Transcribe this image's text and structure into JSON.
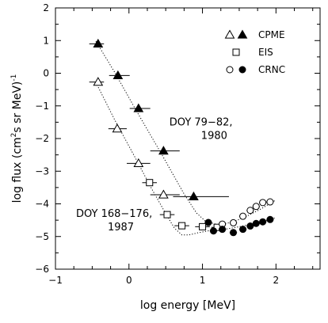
{
  "chart_data": {
    "type": "scatter",
    "xlabel": "log energy  [MeV]",
    "ylabel_main": "log flux  (cm",
    "ylabel_sup1": "2",
    "ylabel_mid": "s  sr MeV)",
    "ylabel_sup2": "-1",
    "xlim": [
      -1,
      2.6
    ],
    "ylim": [
      -6,
      2
    ],
    "xticks": [
      -1,
      0,
      1,
      2
    ],
    "yticks": [
      -6,
      -5,
      -4,
      -3,
      -2,
      -1,
      0,
      1,
      2
    ],
    "grid": false,
    "legend_position": "top-right",
    "legend": [
      {
        "label": "CPME",
        "markers": [
          "triangle-open",
          "triangle-filled"
        ]
      },
      {
        "label": "EIS",
        "markers": [
          "square-open"
        ]
      },
      {
        "label": "CRNC",
        "markers": [
          "circle-open",
          "circle-filled"
        ]
      }
    ],
    "annotations": [
      {
        "lines": [
          "DOY 79−82,",
          "1980"
        ],
        "x": 0.55,
        "y": -1.6
      },
      {
        "lines": [
          "DOY 168−176,",
          "1987"
        ],
        "x": -0.72,
        "y": -4.4
      }
    ],
    "series": [
      {
        "instrument": "CPME",
        "epoch": "1980",
        "marker": "triangle-filled",
        "points": [
          [
            -0.42,
            0.9
          ],
          [
            -0.15,
            -0.07
          ],
          [
            0.13,
            -1.08
          ],
          [
            0.47,
            -2.38
          ],
          [
            0.88,
            -3.78
          ]
        ],
        "xerr_lo": [
          0.12,
          0.12,
          0.12,
          0.18,
          0.28
        ],
        "xerr_hi": [
          0.08,
          0.16,
          0.16,
          0.22,
          0.48
        ]
      },
      {
        "instrument": "CPME",
        "epoch": "1987",
        "marker": "triangle-open",
        "points": [
          [
            -0.42,
            -0.27
          ],
          [
            -0.16,
            -1.7
          ],
          [
            0.13,
            -2.76
          ],
          [
            0.47,
            -3.72
          ]
        ],
        "xerr_lo": [
          0.12,
          0.12,
          0.16,
          0.18
        ],
        "xerr_hi": [
          0.08,
          0.13,
          0.16,
          0.22
        ]
      },
      {
        "instrument": "EIS",
        "epoch": "1987",
        "marker": "square-open",
        "points": [
          [
            0.28,
            -3.35
          ],
          [
            0.52,
            -4.33
          ],
          [
            0.72,
            -4.67
          ],
          [
            1.0,
            -4.7
          ],
          [
            1.2,
            -4.72
          ]
        ],
        "xerr_lo": [
          0.1,
          0.1,
          0.1,
          0.1,
          0.08
        ],
        "xerr_hi": [
          0.1,
          0.1,
          0.1,
          0.1,
          0.08
        ]
      },
      {
        "instrument": "CRNC",
        "epoch": "1980",
        "marker": "circle-open",
        "points": [
          [
            1.27,
            -4.62
          ],
          [
            1.42,
            -4.58
          ],
          [
            1.55,
            -4.38
          ],
          [
            1.65,
            -4.2
          ],
          [
            1.73,
            -4.08
          ],
          [
            1.82,
            -3.96
          ],
          [
            1.92,
            -3.94
          ]
        ],
        "xerr_lo": [
          0.05,
          0.05,
          0.05,
          0.05,
          0.05,
          0.05,
          0.05
        ],
        "xerr_hi": [
          0.05,
          0.05,
          0.05,
          0.05,
          0.05,
          0.05,
          0.05
        ]
      },
      {
        "instrument": "CRNC",
        "epoch": "1987",
        "marker": "circle-filled",
        "points": [
          [
            1.08,
            -4.57
          ],
          [
            1.15,
            -4.83
          ],
          [
            1.27,
            -4.78
          ],
          [
            1.42,
            -4.88
          ],
          [
            1.55,
            -4.78
          ],
          [
            1.65,
            -4.68
          ],
          [
            1.73,
            -4.6
          ],
          [
            1.82,
            -4.55
          ],
          [
            1.92,
            -4.48
          ]
        ],
        "xerr_lo": [
          0.05,
          0.05,
          0.05,
          0.05,
          0.05,
          0.05,
          0.05,
          0.05,
          0.05
        ],
        "xerr_hi": [
          0.05,
          0.05,
          0.05,
          0.05,
          0.05,
          0.05,
          0.05,
          0.05,
          0.05
        ]
      }
    ],
    "fit_curves": [
      {
        "epoch": "1980",
        "style": "dotted",
        "points": [
          [
            -0.45,
            0.98
          ],
          [
            -0.2,
            0.05
          ],
          [
            0.1,
            -1.15
          ],
          [
            0.45,
            -2.5
          ],
          [
            0.75,
            -3.7
          ],
          [
            0.92,
            -4.28
          ],
          [
            1.05,
            -4.55
          ],
          [
            1.2,
            -4.63
          ],
          [
            1.4,
            -4.57
          ],
          [
            1.6,
            -4.38
          ],
          [
            1.8,
            -4.15
          ],
          [
            2.0,
            -3.88
          ]
        ]
      },
      {
        "epoch": "1987",
        "style": "dotted",
        "points": [
          [
            -0.45,
            -0.28
          ],
          [
            -0.2,
            -1.4
          ],
          [
            0.1,
            -2.65
          ],
          [
            0.3,
            -3.5
          ],
          [
            0.5,
            -4.3
          ],
          [
            0.62,
            -4.75
          ],
          [
            0.72,
            -4.95
          ],
          [
            0.82,
            -4.95
          ],
          [
            0.95,
            -4.88
          ],
          [
            1.1,
            -4.82
          ],
          [
            1.3,
            -4.78
          ],
          [
            1.5,
            -4.7
          ],
          [
            1.7,
            -4.6
          ],
          [
            1.9,
            -4.5
          ],
          [
            2.0,
            -4.42
          ]
        ]
      }
    ]
  }
}
